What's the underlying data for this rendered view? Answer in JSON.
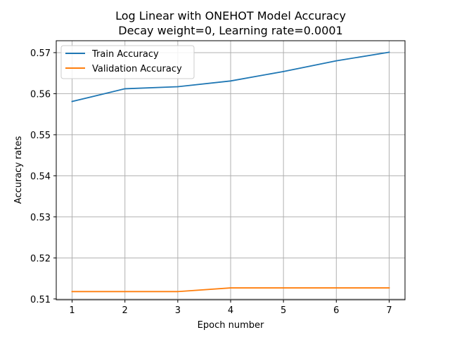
{
  "chart_data": {
    "type": "line",
    "title": "Log Linear with ONEHOT Model Accuracy",
    "subtitle": "Decay weight=0, Learning rate=0.0001",
    "xlabel": "Epoch number",
    "ylabel": "Accuracy rates",
    "x": [
      1,
      2,
      3,
      4,
      5,
      6,
      7
    ],
    "xlim": [
      0.7,
      7.3
    ],
    "ylim": [
      0.5098,
      0.5729
    ],
    "xticks": [
      1,
      2,
      3,
      4,
      5,
      6,
      7
    ],
    "yticks": [
      0.51,
      0.52,
      0.53,
      0.54,
      0.55,
      0.56,
      0.57
    ],
    "ytick_labels": [
      "0.51",
      "0.52",
      "0.53",
      "0.54",
      "0.55",
      "0.56",
      "0.57"
    ],
    "grid": true,
    "legend_position": "top-left",
    "series": [
      {
        "name": "Train Accuracy",
        "color": "#1f77b4",
        "values": [
          0.5581,
          0.5612,
          0.5617,
          0.5631,
          0.5654,
          0.568,
          0.5701
        ]
      },
      {
        "name": "Validation Accuracy",
        "color": "#ff7f0e",
        "values": [
          0.5118,
          0.5118,
          0.5118,
          0.5127,
          0.5127,
          0.5127,
          0.5127
        ]
      }
    ]
  }
}
